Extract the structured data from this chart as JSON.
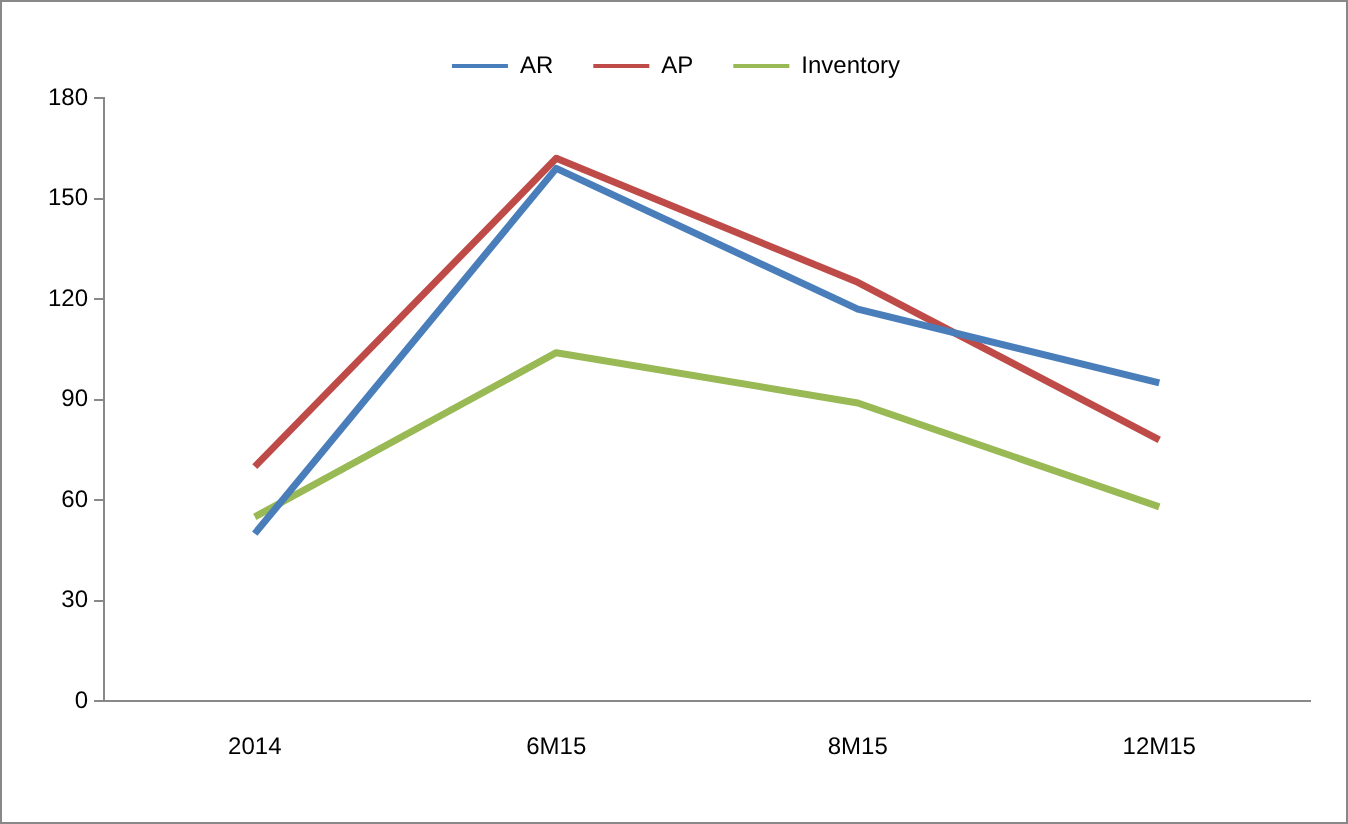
{
  "chart_data": {
    "type": "line",
    "categories": [
      "2014",
      "6M15",
      "8M15",
      "12M15"
    ],
    "series": [
      {
        "name": "AR",
        "color": "#4a7ebb",
        "values": [
          50,
          159,
          117,
          95
        ]
      },
      {
        "name": "AP",
        "color": "#be4b48",
        "values": [
          70,
          162,
          125,
          78
        ]
      },
      {
        "name": "Inventory",
        "color": "#98b954",
        "values": [
          55,
          104,
          89,
          58
        ]
      }
    ],
    "ylim": [
      0,
      180
    ],
    "yticks": [
      0,
      30,
      60,
      90,
      120,
      150,
      180
    ],
    "grid": false,
    "legend": "top",
    "marker": "none",
    "line_style": "solid"
  }
}
